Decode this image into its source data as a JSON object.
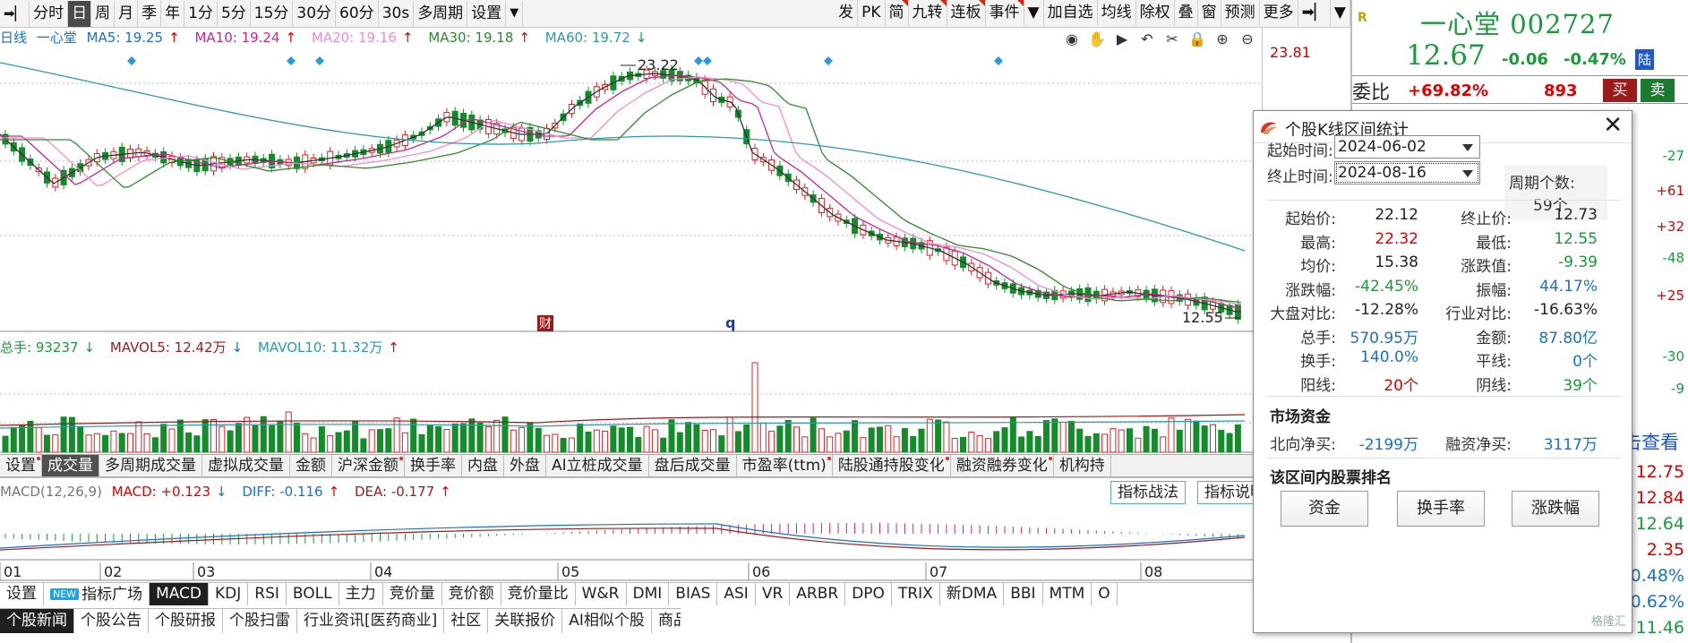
{
  "toolbar": {
    "left": [
      {
        "label": "分时",
        "active": false
      },
      {
        "label": "日",
        "active": true
      },
      {
        "label": "周",
        "active": false
      },
      {
        "label": "月",
        "active": false
      },
      {
        "label": "季",
        "active": false
      },
      {
        "label": "年",
        "active": false
      },
      {
        "label": "1分",
        "active": false
      },
      {
        "label": "5分",
        "active": false
      },
      {
        "label": "15分",
        "active": false
      },
      {
        "label": "30分",
        "active": false
      },
      {
        "label": "60分",
        "active": false
      },
      {
        "label": "30s",
        "active": false
      },
      {
        "label": "多周期",
        "active": false
      },
      {
        "label": "设置",
        "active": false
      }
    ],
    "right": [
      {
        "label": "发",
        "corner": false
      },
      {
        "label": "PK",
        "corner": false
      },
      {
        "label": "简",
        "corner": true
      },
      {
        "label": "九转",
        "corner": true
      },
      {
        "label": "连板",
        "corner": true
      },
      {
        "label": "事件",
        "corner": true
      },
      {
        "label": "加自选",
        "corner": false
      },
      {
        "label": "均线",
        "corner": false
      },
      {
        "label": "除权",
        "corner": false
      },
      {
        "label": "叠",
        "corner": false
      },
      {
        "label": "窗",
        "corner": false
      },
      {
        "label": "预测",
        "corner": false
      },
      {
        "label": "更多",
        "corner": false
      }
    ]
  },
  "kline_legend": {
    "type": "日线",
    "name": "一心堂",
    "ma5": "MA5: 19.25",
    "ma10": "MA10: 19.24",
    "ma20": "MA20: 19.16",
    "ma30": "MA30: 19.18",
    "ma60": "MA60: 19.72"
  },
  "price_scale_top": "23.81",
  "high_marker": "23.22",
  "low_marker": "12.55",
  "event_marks": [
    "财",
    "q"
  ],
  "volume_legend": {
    "total": "总手: 93237",
    "mavol5": "MAVOL5: 12.42万",
    "mavol10": "MAVOL10: 11.32万"
  },
  "indicator_tabs": [
    {
      "label": "设置",
      "on": false,
      "dot": true
    },
    {
      "label": "成交量",
      "on": true,
      "dot": false
    },
    {
      "label": "多周期成交量",
      "on": false,
      "dot": false
    },
    {
      "label": "虚拟成交量",
      "on": false,
      "dot": false
    },
    {
      "label": "金额",
      "on": false,
      "dot": false
    },
    {
      "label": "沪深金额",
      "on": false,
      "dot": true
    },
    {
      "label": "换手率",
      "on": false,
      "dot": false
    },
    {
      "label": "内盘",
      "on": false,
      "dot": false
    },
    {
      "label": "外盘",
      "on": false,
      "dot": false
    },
    {
      "label": "AI立桩成交量",
      "on": false,
      "dot": false
    },
    {
      "label": "盘后成交量",
      "on": false,
      "dot": false
    },
    {
      "label": "市盈率(ttm)",
      "on": false,
      "dot": true
    },
    {
      "label": "陆股通持股变化",
      "on": false,
      "dot": true
    },
    {
      "label": "融资融券变化",
      "on": false,
      "dot": true
    },
    {
      "label": "机构持",
      "on": false,
      "dot": false
    }
  ],
  "macd_legend": {
    "name": "MACD(12,26,9)",
    "macd": "MACD: +0.123",
    "diff": "DIFF: -0.116",
    "dea": "DEA: -0.177"
  },
  "macd_buttons": [
    "指标战法",
    "指标说明"
  ],
  "months": [
    "01",
    "02",
    "03",
    "04",
    "05",
    "06",
    "07",
    "08"
  ],
  "bottom_tabs": {
    "new_badge": "NEW",
    "items": [
      {
        "label": "设置",
        "on": false
      },
      {
        "label": "指标广场",
        "on": false
      },
      {
        "label": "MACD",
        "on": true
      },
      {
        "label": "KDJ",
        "on": false
      },
      {
        "label": "RSI",
        "on": false
      },
      {
        "label": "BOLL",
        "on": false
      },
      {
        "label": "主力",
        "on": false
      },
      {
        "label": "竞价量",
        "on": false
      },
      {
        "label": "竞价额",
        "on": false
      },
      {
        "label": "竞价量比",
        "on": false
      },
      {
        "label": "W&R",
        "on": false
      },
      {
        "label": "DMI",
        "on": false
      },
      {
        "label": "BIAS",
        "on": false
      },
      {
        "label": "ASI",
        "on": false
      },
      {
        "label": "VR",
        "on": false
      },
      {
        "label": "ARBR",
        "on": false
      },
      {
        "label": "DPO",
        "on": false
      },
      {
        "label": "TRIX",
        "on": false
      },
      {
        "label": "新DMA",
        "on": false
      },
      {
        "label": "BBI",
        "on": false
      },
      {
        "label": "MTM",
        "on": false
      },
      {
        "label": "O",
        "on": false
      }
    ]
  },
  "news_tabs": [
    {
      "label": "个股新闻",
      "on": true
    },
    {
      "label": "个股公告",
      "on": false
    },
    {
      "label": "个股研报",
      "on": false
    },
    {
      "label": "个股扫雷",
      "on": false
    },
    {
      "label": "行业资讯[医药商业]",
      "on": false
    },
    {
      "label": "社区",
      "on": false
    },
    {
      "label": "关联报价",
      "on": false
    },
    {
      "label": "AI相似个股",
      "on": false
    },
    {
      "label": "商品价格",
      "on": false
    }
  ],
  "quote": {
    "r_tag": "R",
    "title": "一心堂 002727",
    "price": "12.67",
    "change": "-0.06",
    "change_pct": "-0.47%",
    "board": "陆",
    "webi_label": "委比",
    "webi_value": "+69.82%",
    "webi_count": "893",
    "buy": "买",
    "sell": "卖",
    "side_values": [
      "-27",
      "+61",
      "+32",
      "-48",
      "+25",
      "-30",
      "-9"
    ],
    "click_text": "击查看",
    "right_prices": [
      {
        "v": "12.75",
        "c": "#d00"
      },
      {
        "v": "12.84",
        "c": "#d00"
      },
      {
        "v": "12.64",
        "c": "#1a9a3a"
      },
      {
        "v": "2.35",
        "c": "#d00"
      },
      {
        "v": "0.48%",
        "c": "#1a6fc9"
      },
      {
        "v": "0.62%",
        "c": "#1a6fc9"
      },
      {
        "v": "11.46",
        "c": "#1a9a3a"
      }
    ]
  },
  "dialog": {
    "title": "个股K线区间统计",
    "start_label": "起始时间:",
    "start_value": "2024-06-02",
    "end_label": "终止时间:",
    "end_value": "2024-08-16",
    "cycle_label": "周期个数:",
    "cycle_value": "59个",
    "stats": [
      {
        "a": "起始价:",
        "av": "22.12",
        "ac": "blk",
        "b": "终止价:",
        "bv": "12.73",
        "bc": "blk"
      },
      {
        "a": "最高:",
        "av": "22.32",
        "ac": "red",
        "b": "最低:",
        "bv": "12.55",
        "bc": "green"
      },
      {
        "a": "均价:",
        "av": "15.38",
        "ac": "blk",
        "b": "涨跌值:",
        "bv": "-9.39",
        "bc": "green"
      },
      {
        "a": "涨跌幅:",
        "av": "-42.45%",
        "ac": "green",
        "b": "振幅:",
        "bv": "44.17%",
        "bc": "blue"
      },
      {
        "a": "大盘对比:",
        "av": "-12.28%",
        "ac": "blk",
        "b": "行业对比:",
        "bv": "-16.63%",
        "bc": "blk"
      },
      {
        "a": "总手:",
        "av": "570.95万",
        "ac": "blue",
        "b": "金额:",
        "bv": "87.80亿",
        "bc": "blue"
      },
      {
        "a": "换手:",
        "av": "140.0%",
        "ac": "blue",
        "b": "平线:",
        "bv": "0个",
        "bc": "blue"
      },
      {
        "a": "阳线:",
        "av": "20个",
        "ac": "red",
        "b": "阴线:",
        "bv": "39个",
        "bc": "green"
      }
    ],
    "market_title": "市场资金",
    "north_label": "北向净买:",
    "north_value": "-2199万",
    "margin_label": "融资净买:",
    "margin_value": "3117万",
    "rank_title": "该区间内股票排名",
    "buttons": [
      "资金",
      "换手率",
      "涨跌幅"
    ],
    "watermark": "格隆汇"
  },
  "colors": {
    "up": "#e02020",
    "down": "#138c2a",
    "ma5": "#333333",
    "ma10": "#c8288c",
    "ma20": "#f08cd0",
    "ma30": "#2e8b2e",
    "ma60": "#2b9aa8"
  }
}
